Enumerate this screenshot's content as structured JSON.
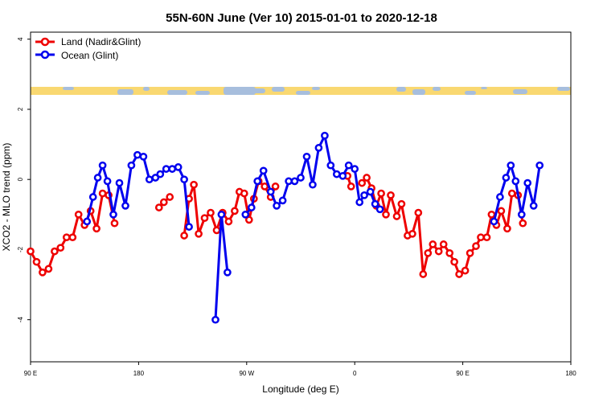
{
  "chart_data": {
    "type": "line",
    "title": "55N-60N June (Ver 10)   2015-01-01 to 2020-12-18",
    "xlabel": "Longitude (deg E)",
    "ylabel": "XCO2 - MLO trend (ppm)",
    "x_ticks": [
      {
        "value": 90,
        "label": "90 E"
      },
      {
        "value": 180,
        "label": "180"
      },
      {
        "value": 270,
        "label": "90 W"
      },
      {
        "value": 360,
        "label": "0"
      },
      {
        "value": 450,
        "label": "90 E"
      },
      {
        "value": 540,
        "label": "180"
      }
    ],
    "y_ticks": [
      {
        "value": -4,
        "label": "-4"
      },
      {
        "value": -2,
        "label": "-2"
      },
      {
        "value": 0,
        "label": "0"
      },
      {
        "value": 2,
        "label": "2"
      },
      {
        "value": 4,
        "label": "4"
      }
    ],
    "xlim": [
      90,
      540
    ],
    "ylim": [
      -5.2,
      4.2
    ],
    "grid": false,
    "legend_position": "top-left",
    "series": [
      {
        "name": "Land (Nadir&Glint)",
        "color": "#ee0000",
        "segments": [
          [
            [
              90,
              -2.05
            ],
            [
              95,
              -2.35
            ],
            [
              100,
              -2.65
            ],
            [
              105,
              -2.55
            ],
            [
              110,
              -2.05
            ],
            [
              115,
              -1.95
            ],
            [
              120,
              -1.65
            ],
            [
              125,
              -1.65
            ],
            [
              130,
              -1.0
            ],
            [
              135,
              -1.3
            ],
            [
              140,
              -0.9
            ],
            [
              145,
              -1.4
            ],
            [
              150,
              -0.4
            ],
            [
              155,
              -0.45
            ],
            [
              160,
              -1.25
            ]
          ],
          [
            [
              197,
              -0.8
            ],
            [
              201,
              -0.65
            ],
            [
              206,
              -0.5
            ]
          ],
          [
            [
              218,
              -1.6
            ],
            [
              222,
              -0.55
            ],
            [
              226,
              -0.15
            ],
            [
              230,
              -1.55
            ],
            [
              235,
              -1.1
            ],
            [
              240,
              -0.95
            ],
            [
              245,
              -1.45
            ],
            [
              250,
              -0.95
            ],
            [
              255,
              -1.2
            ],
            [
              260,
              -0.9
            ],
            [
              264,
              -0.35
            ],
            [
              268,
              -0.4
            ],
            [
              272,
              -1.15
            ],
            [
              276,
              -0.55
            ],
            [
              280,
              -0.05
            ],
            [
              285,
              -0.2
            ],
            [
              290,
              -0.5
            ],
            [
              294,
              -0.2
            ]
          ],
          [
            [
              354,
              0.1
            ],
            [
              357,
              -0.2
            ]
          ],
          [
            [
              366,
              -0.1
            ],
            [
              370,
              0.05
            ],
            [
              374,
              -0.25
            ],
            [
              378,
              -0.75
            ],
            [
              382,
              -0.4
            ],
            [
              386,
              -1.0
            ],
            [
              390,
              -0.45
            ],
            [
              395,
              -1.05
            ],
            [
              399,
              -0.7
            ],
            [
              404,
              -1.6
            ],
            [
              408,
              -1.55
            ],
            [
              413,
              -0.95
            ],
            [
              417,
              -2.7
            ],
            [
              421,
              -2.1
            ],
            [
              425,
              -1.85
            ],
            [
              430,
              -2.05
            ],
            [
              434,
              -1.85
            ],
            [
              439,
              -2.1
            ],
            [
              443,
              -2.35
            ],
            [
              447,
              -2.7
            ],
            [
              452,
              -2.6
            ],
            [
              456,
              -2.1
            ],
            [
              461,
              -1.9
            ],
            [
              465,
              -1.65
            ],
            [
              470,
              -1.65
            ],
            [
              474,
              -1.0
            ],
            [
              478,
              -1.3
            ],
            [
              482,
              -0.9
            ],
            [
              487,
              -1.4
            ],
            [
              491,
              -0.4
            ],
            [
              496,
              -0.45
            ],
            [
              500,
              -1.25
            ]
          ]
        ]
      },
      {
        "name": "Ocean (Glint)",
        "color": "#0000ee",
        "segments": [
          [
            [
              137,
              -1.2
            ],
            [
              142,
              -0.5
            ],
            [
              146,
              0.05
            ],
            [
              150,
              0.4
            ],
            [
              154,
              -0.05
            ],
            [
              159,
              -1.0
            ],
            [
              164,
              -0.1
            ],
            [
              169,
              -0.75
            ],
            [
              174,
              0.4
            ],
            [
              179,
              0.7
            ],
            [
              184,
              0.65
            ],
            [
              189,
              0.0
            ],
            [
              194,
              0.05
            ],
            [
              198,
              0.15
            ],
            [
              203,
              0.3
            ],
            [
              208,
              0.3
            ],
            [
              213,
              0.35
            ],
            [
              218,
              0.0
            ],
            [
              222,
              -1.35
            ]
          ],
          [
            [
              244,
              -4.0
            ],
            [
              249,
              -1.0
            ],
            [
              254,
              -2.65
            ]
          ],
          [
            [
              269,
              -1.0
            ],
            [
              274,
              -0.8
            ],
            [
              279,
              -0.05
            ],
            [
              284,
              0.25
            ],
            [
              290,
              -0.35
            ],
            [
              295,
              -0.75
            ],
            [
              300,
              -0.6
            ],
            [
              305,
              -0.05
            ],
            [
              310,
              -0.05
            ],
            [
              315,
              0.05
            ],
            [
              320,
              0.65
            ],
            [
              325,
              -0.15
            ],
            [
              330,
              0.9
            ],
            [
              335,
              1.25
            ],
            [
              340,
              0.4
            ],
            [
              345,
              0.15
            ],
            [
              350,
              0.1
            ],
            [
              355,
              0.4
            ],
            [
              360,
              0.3
            ],
            [
              364,
              -0.65
            ],
            [
              368,
              -0.45
            ],
            [
              373,
              -0.35
            ],
            [
              377,
              -0.7
            ],
            [
              381,
              -0.85
            ]
          ],
          [
            [
              476,
              -1.2
            ],
            [
              481,
              -0.5
            ],
            [
              486,
              0.05
            ],
            [
              490,
              0.4
            ],
            [
              494,
              -0.05
            ],
            [
              499,
              -1.0
            ],
            [
              504,
              -0.1
            ],
            [
              509,
              -0.75
            ],
            [
              514,
              0.4
            ]
          ]
        ]
      }
    ]
  }
}
